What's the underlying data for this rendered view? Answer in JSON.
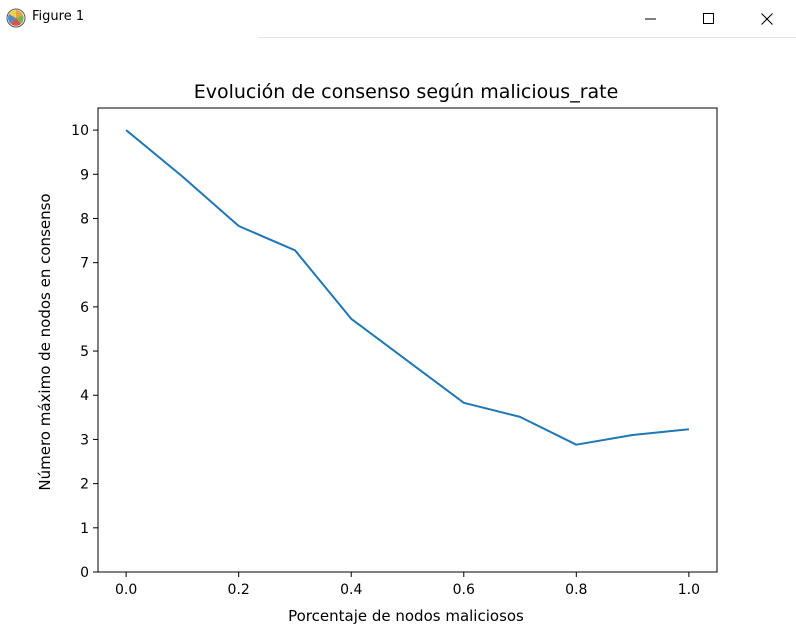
{
  "window": {
    "title": "Figure 1",
    "icon": "matplotlib-icon",
    "controls": [
      "minimize-icon",
      "maximize-icon",
      "close-icon"
    ]
  },
  "chart_data": {
    "type": "line",
    "title": "Evolución de consenso según malicious_rate",
    "xlabel": "Porcentaje de nodos maliciosos",
    "ylabel": "Número máximo de nodos en consenso",
    "x": [
      0.0,
      0.1,
      0.2,
      0.3,
      0.4,
      0.5,
      0.6,
      0.7,
      0.8,
      0.9,
      1.0
    ],
    "y": [
      10.0,
      8.95,
      7.83,
      7.28,
      5.73,
      4.78,
      3.83,
      3.51,
      2.88,
      3.1,
      3.23
    ],
    "xlim": [
      -0.05,
      1.05
    ],
    "ylim": [
      0,
      10.5
    ],
    "xticks": [
      "0.0",
      "0.2",
      "0.4",
      "0.6",
      "0.8",
      "1.0"
    ],
    "xtick_values": [
      0.0,
      0.2,
      0.4,
      0.6,
      0.8,
      1.0
    ],
    "yticks": [
      "0",
      "1",
      "2",
      "3",
      "4",
      "5",
      "6",
      "7",
      "8",
      "9",
      "10"
    ],
    "ytick_values": [
      0,
      1,
      2,
      3,
      4,
      5,
      6,
      7,
      8,
      9,
      10
    ],
    "line_color": "#1f77b4",
    "grid": false,
    "legend": "none"
  }
}
